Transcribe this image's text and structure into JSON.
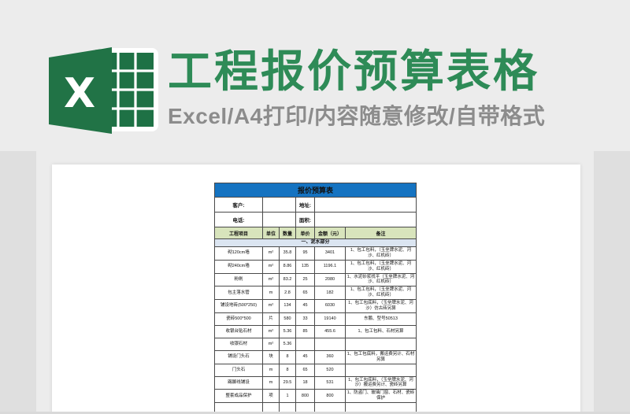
{
  "page": {
    "background_color": "#ececec",
    "accent_green": "#217346",
    "title_green": "#2e8b57",
    "subtitle_gray": "#8c8c8c",
    "sheet_header_blue": "#1573c1",
    "column_header_green": "#d8e4bc",
    "section_row_blue": "#dbe5f1"
  },
  "header": {
    "title": "工程报价预算表格",
    "subtitle": "Excel/A4打印/内容随意修改/自带格式",
    "logo_letter": "X"
  },
  "sheet": {
    "title": "报价预算表",
    "info_rows": [
      {
        "label1": "客户:",
        "value1": "",
        "label2": "地址:",
        "value2": ""
      },
      {
        "label1": "电话:",
        "value1": "",
        "label2": "面积:",
        "value2": ""
      }
    ],
    "columns": [
      "工程项目",
      "单位",
      "数量",
      "单价",
      "金额（元）",
      "备注"
    ],
    "section_title": "一、泥水部分",
    "rows": [
      {
        "item": "砌120cm墙",
        "unit": "m²",
        "qty": "35.8",
        "price": "95",
        "amount": "3401",
        "remark": "1、包工包料，（玉垒牌水泥、河沙、红机砖）"
      },
      {
        "item": "砌240cm墙",
        "unit": "m²",
        "qty": "8.86",
        "price": "135",
        "amount": "1196.1",
        "remark": "1、包工包料，（玉垒牌水泥、河沙、红机砖）"
      },
      {
        "item": "粉刷",
        "unit": "m²",
        "qty": "83.2",
        "price": "25",
        "amount": "2080",
        "remark": "1、水泥砂浆找平（玉垒牌水泥、河沙、红机砖）"
      },
      {
        "item": "包主落水管",
        "unit": "m",
        "qty": "2.8",
        "price": "65",
        "amount": "182",
        "remark": "1、包工包料，（玉垒牌水泥、河沙、红机砖）"
      },
      {
        "item": "铺设地砖(500*250)",
        "unit": "m²",
        "qty": "134",
        "price": "45",
        "amount": "6030",
        "remark": "1、包工包底料，（玉垒牌水泥、河沙）仿古砖另算"
      },
      {
        "item": "瓷砖500*500",
        "unit": "片",
        "qty": "580",
        "price": "33",
        "amount": "19140",
        "remark": "东鹏、型号50513"
      },
      {
        "item": "收银台贴石材",
        "unit": "m²",
        "qty": "5.36",
        "price": "85",
        "amount": "455.6",
        "remark": "1、包工包料、石材另算"
      },
      {
        "item": "收银石材",
        "unit": "m²",
        "qty": "5.36",
        "price": "",
        "amount": "",
        "remark": ""
      },
      {
        "item": "铺设门头石",
        "unit": "块",
        "qty": "8",
        "price": "45",
        "amount": "360",
        "remark": "1、包工包底料，搬运费另计、石材另算"
      },
      {
        "item": "门头石",
        "unit": "m",
        "qty": "8",
        "price": "65",
        "amount": "520",
        "remark": ""
      },
      {
        "item": "踢脚线铺设",
        "unit": "m",
        "qty": "29.5",
        "price": "18",
        "amount": "531",
        "remark": "1、包工包底料，（玉垒牌水泥、河沙）搬运费另计、瓷砖另算"
      },
      {
        "item": "整套成品保护",
        "unit": "项",
        "qty": "1",
        "price": "800",
        "amount": "800",
        "remark": "1、防盗门、玻璃门窗、石材、瓷砖保护"
      },
      {
        "item": "",
        "unit": "",
        "qty": "",
        "price": "",
        "amount": "",
        "remark": ""
      }
    ]
  }
}
